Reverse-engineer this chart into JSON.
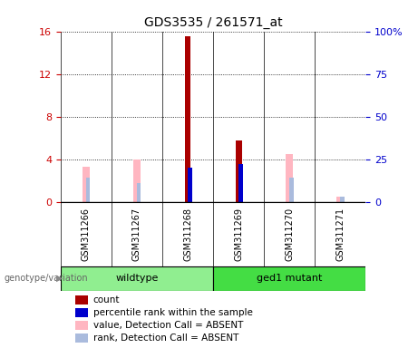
{
  "title": "GDS3535 / 261571_at",
  "samples": [
    "GSM311266",
    "GSM311267",
    "GSM311268",
    "GSM311269",
    "GSM311270",
    "GSM311271"
  ],
  "count_values": [
    0,
    0,
    15.5,
    5.8,
    0,
    0
  ],
  "percentile_values": [
    0,
    0,
    20,
    22,
    0,
    0
  ],
  "absent_value_values": [
    3.3,
    4.0,
    0,
    0,
    4.5,
    0.5
  ],
  "absent_rank_values": [
    14,
    11,
    0,
    0,
    14,
    3
  ],
  "ylim_left": [
    0,
    16
  ],
  "ylim_right": [
    0,
    100
  ],
  "yticks_left": [
    0,
    4,
    8,
    12,
    16
  ],
  "ytick_labels_left": [
    "0",
    "4",
    "8",
    "12",
    "16"
  ],
  "yticks_right": [
    0,
    25,
    50,
    75,
    100
  ],
  "ytick_labels_right": [
    "0",
    "25",
    "50",
    "75",
    "100%"
  ],
  "bar_color_count": "#AA0000",
  "bar_color_percentile": "#0000CC",
  "bar_color_absent_value": "#FFB6C1",
  "bar_color_absent_rank": "#AABBDD",
  "left_tick_color": "#CC0000",
  "right_tick_color": "#0000CC",
  "plot_bg": "#FFFFFF",
  "sample_box_bg": "#CCCCCC",
  "wildtype_bg": "#90EE90",
  "mutant_bg": "#44DD44",
  "genotype_label": "genotype/variation",
  "legend_items": [
    {
      "color": "#AA0000",
      "label": "count"
    },
    {
      "color": "#0000CC",
      "label": "percentile rank within the sample"
    },
    {
      "color": "#FFB6C1",
      "label": "value, Detection Call = ABSENT"
    },
    {
      "color": "#AABBDD",
      "label": "rank, Detection Call = ABSENT"
    }
  ]
}
